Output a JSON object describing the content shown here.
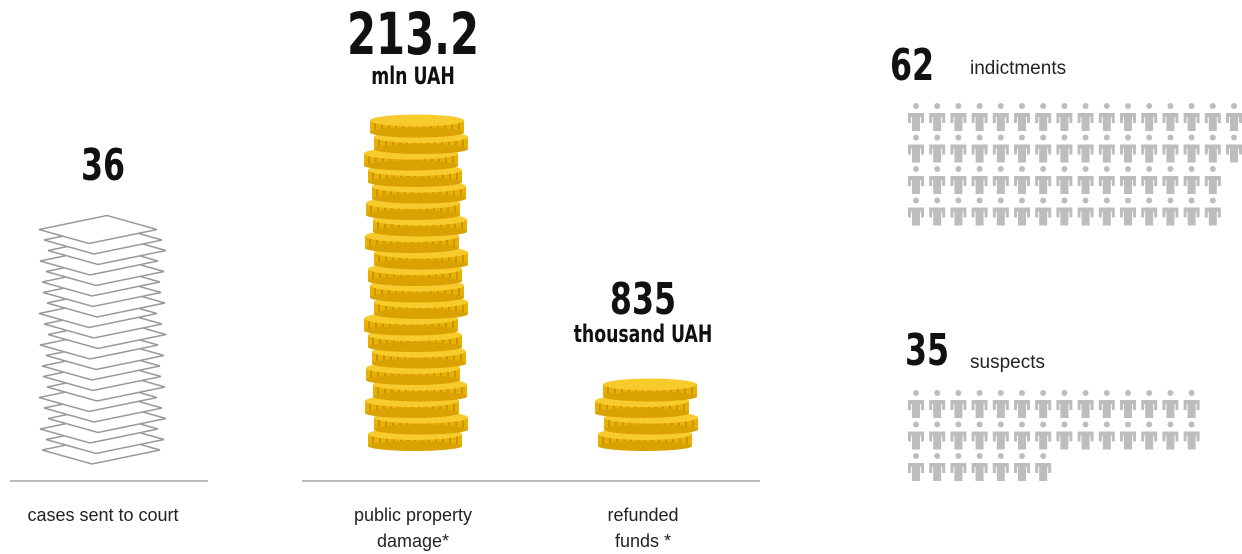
{
  "stats": [
    {
      "value": "36",
      "label": "cases sent to court"
    },
    {
      "value": "213.2",
      "unit": "mln UAH",
      "label": "public property damage*"
    },
    {
      "value": "835",
      "unit": "thousand UAH",
      "label": "refunded funds *"
    }
  ],
  "people": [
    {
      "value": 62,
      "label": "indictments",
      "per_row": [
        16,
        16,
        15,
        15
      ]
    },
    {
      "value": 35,
      "label": "suspects",
      "per_row": [
        14,
        14,
        7
      ]
    }
  ]
}
